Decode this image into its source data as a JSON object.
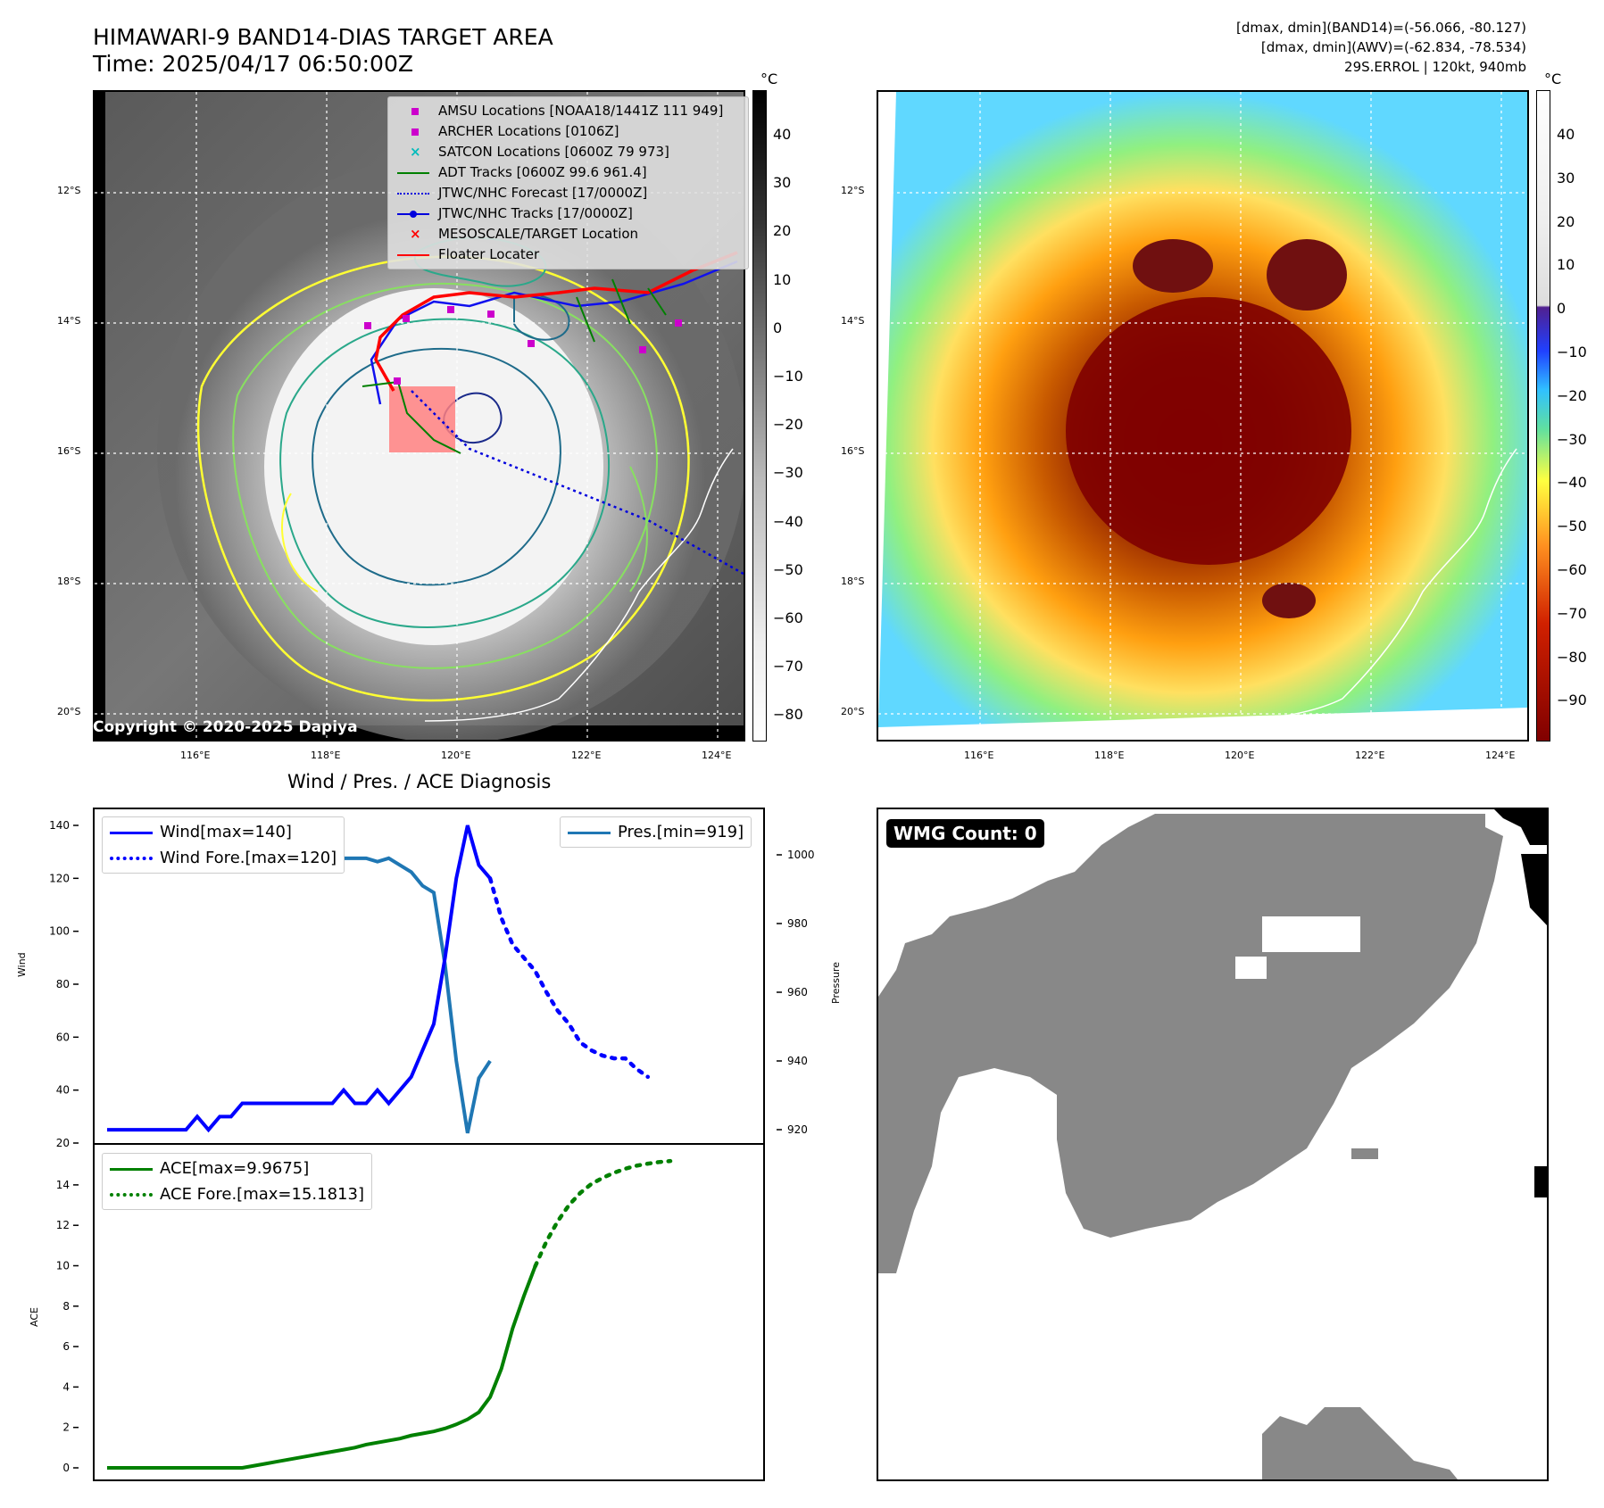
{
  "header": {
    "title_line1": "HIMAWARI-9 BAND14-DIAS TARGET AREA",
    "title_line2": "Time: 2025/04/17 06:50:00Z",
    "info_line1": "[dmax, dmin](BAND14)=(-56.066, -80.127)",
    "info_line2": "[dmax, dmin](AWV)=(-62.834, -78.534)",
    "info_line3": "29S.ERROL | 120kt, 940mb"
  },
  "map_panels": {
    "lat_labels": [
      "12°S",
      "14°S",
      "16°S",
      "18°S",
      "20°S"
    ],
    "lon_labels": [
      "116°E",
      "118°E",
      "120°E",
      "122°E",
      "124°E"
    ],
    "copyright": "Copyright © 2020-2025 Dapiya",
    "colors": {
      "eye_red": "#800000",
      "coast": "#ffffff"
    }
  },
  "colorbar_left": {
    "unit": "°C",
    "ticks": [
      "40",
      "30",
      "20",
      "10",
      "0",
      "−10",
      "−20",
      "−30",
      "−40",
      "−50",
      "−60",
      "−70",
      "−80"
    ]
  },
  "colorbar_right": {
    "unit": "°C",
    "ticks": [
      "40",
      "30",
      "20",
      "10",
      "0",
      "−10",
      "−20",
      "−30",
      "−40",
      "−50",
      "−60",
      "−70",
      "−80",
      "−90"
    ]
  },
  "map_legend": {
    "items": [
      {
        "label": "AMSU Locations [NOAA18/1441Z 111 949]",
        "icon": "magenta-square"
      },
      {
        "label": "ARCHER Locations [0106Z]",
        "icon": "magenta-square"
      },
      {
        "label": "SATCON Locations [0600Z 79 973]",
        "icon": "cyan-x"
      },
      {
        "label": "ADT Tracks [0600Z 99.6 961.4]",
        "icon": "green-line"
      },
      {
        "label": "JTWC/NHC Forecast [17/0000Z]",
        "icon": "blue-dotted-line"
      },
      {
        "label": "JTWC/NHC Tracks [17/0000Z]",
        "icon": "blue-dot-line"
      },
      {
        "label": "MESOSCALE/TARGET Location",
        "icon": "red-x"
      },
      {
        "label": "Floater Locater",
        "icon": "red-line"
      }
    ]
  },
  "diagnosis": {
    "title": "Wind / Pres. / ACE Diagnosis",
    "wind_ylabel": "Wind",
    "pres_ylabel": "Pressure",
    "ace_ylabel": "ACE",
    "legend_wind": "Wind[max=140]",
    "legend_wind_fore": "Wind Fore.[max=120]",
    "legend_pres": "Pres.[min=919]",
    "legend_ace": "ACE[max=9.9675]",
    "legend_ace_fore": "ACE Fore.[max=15.1813]"
  },
  "wmg": {
    "label": "WMG Count: 0"
  },
  "chart_data": [
    {
      "type": "line",
      "title": "Wind / Pres. / ACE Diagnosis",
      "ylabel": "Wind",
      "ylim": [
        20,
        145
      ],
      "yticks": [
        20,
        40,
        60,
        80,
        100,
        120,
        140
      ],
      "series": [
        {
          "name": "Wind[max=140]",
          "color": "#0000ff",
          "style": "solid",
          "values": [
            25,
            25,
            25,
            25,
            25,
            25,
            25,
            25,
            30,
            25,
            30,
            30,
            35,
            35,
            35,
            35,
            35,
            35,
            35,
            35,
            35,
            40,
            35,
            35,
            40,
            35,
            40,
            45,
            55,
            65,
            90,
            120,
            140,
            125,
            120
          ]
        },
        {
          "name": "Wind Fore.[max=120]",
          "color": "#0000ff",
          "style": "dotted",
          "values": [
            null,
            null,
            null,
            null,
            null,
            null,
            null,
            null,
            null,
            null,
            null,
            null,
            null,
            null,
            null,
            null,
            null,
            null,
            null,
            null,
            null,
            null,
            null,
            null,
            null,
            null,
            null,
            null,
            null,
            null,
            null,
            null,
            null,
            null,
            120,
            105,
            95,
            90,
            85,
            77,
            70,
            65,
            58,
            55,
            53,
            52,
            52,
            48,
            45
          ]
        }
      ]
    },
    {
      "type": "line",
      "ylabel": "Pressure",
      "ylim": [
        915,
        1010
      ],
      "yticks": [
        920,
        940,
        960,
        980,
        1000
      ],
      "series": [
        {
          "name": "Pres.[min=919]",
          "color": "#1f77b4",
          "style": "solid",
          "values": [
            1008,
            1006,
            1006,
            1005,
            1005,
            1004,
            1001,
            1000,
            999,
            1000,
            999,
            999,
            999,
            999,
            999,
            999,
            999,
            999,
            999,
            999,
            999,
            999,
            999,
            999,
            998,
            999,
            997,
            995,
            991,
            989,
            968,
            940,
            919,
            935,
            940
          ]
        }
      ]
    },
    {
      "type": "line",
      "ylabel": "ACE",
      "ylim": [
        -0.5,
        15.5
      ],
      "yticks": [
        0,
        2,
        4,
        6,
        8,
        10,
        12,
        14
      ],
      "series": [
        {
          "name": "ACE[max=9.9675]",
          "color": "#008000",
          "style": "solid",
          "values": [
            0,
            0,
            0,
            0,
            0,
            0,
            0,
            0,
            0,
            0,
            0,
            0,
            0,
            0.1,
            0.2,
            0.3,
            0.4,
            0.5,
            0.6,
            0.7,
            0.8,
            0.9,
            1.0,
            1.15,
            1.25,
            1.35,
            1.45,
            1.6,
            1.7,
            1.8,
            1.95,
            2.15,
            2.4,
            2.75,
            3.5,
            4.9,
            6.9,
            8.5,
            9.97
          ]
        },
        {
          "name": "ACE Fore.[max=15.1813]",
          "color": "#008000",
          "style": "dotted",
          "values": [
            null,
            null,
            null,
            null,
            null,
            null,
            null,
            null,
            null,
            null,
            null,
            null,
            null,
            null,
            null,
            null,
            null,
            null,
            null,
            null,
            null,
            null,
            null,
            null,
            null,
            null,
            null,
            null,
            null,
            null,
            null,
            null,
            null,
            null,
            null,
            null,
            null,
            null,
            9.97,
            11.2,
            12.2,
            13.0,
            13.6,
            14.05,
            14.35,
            14.6,
            14.8,
            14.95,
            15.05,
            15.13,
            15.18
          ]
        }
      ]
    }
  ]
}
